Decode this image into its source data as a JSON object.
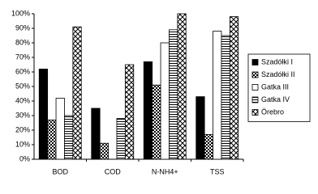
{
  "chart_data": {
    "type": "bar",
    "categories": [
      "BOD",
      "COD",
      "N-NH4+",
      "TSS"
    ],
    "series": [
      {
        "name": "Szadółki I",
        "color": "#000000",
        "pattern": "solid",
        "values": [
          62,
          35,
          67,
          43
        ]
      },
      {
        "name": "Szadółki II",
        "color": "#000000",
        "pattern": "checker",
        "values": [
          27,
          11,
          51,
          17
        ]
      },
      {
        "name": "Gatka III",
        "color": "#ffffff",
        "pattern": "solid",
        "values": [
          42,
          null,
          80,
          88
        ]
      },
      {
        "name": "Gatka IV",
        "color": "#000000",
        "pattern": "hlines",
        "values": [
          30,
          28,
          89,
          85
        ]
      },
      {
        "name": "Örebro",
        "color": "#000000",
        "pattern": "diamond",
        "values": [
          91,
          65,
          100,
          98
        ]
      }
    ],
    "ylim": [
      0,
      100
    ],
    "yticks": [
      {
        "value": 0,
        "label": "0%"
      },
      {
        "value": 10,
        "label": "10%"
      },
      {
        "value": 20,
        "label": "20%"
      },
      {
        "value": 30,
        "label": "30%"
      },
      {
        "value": 40,
        "label": "40%"
      },
      {
        "value": 50,
        "label": "50%"
      },
      {
        "value": 60,
        "label": "60%"
      },
      {
        "value": 70,
        "label": "70%"
      },
      {
        "value": 80,
        "label": "80%"
      },
      {
        "value": 90,
        "label": "90%"
      },
      {
        "value": 100,
        "label": "100%"
      }
    ],
    "grid": false,
    "legend": "right"
  }
}
